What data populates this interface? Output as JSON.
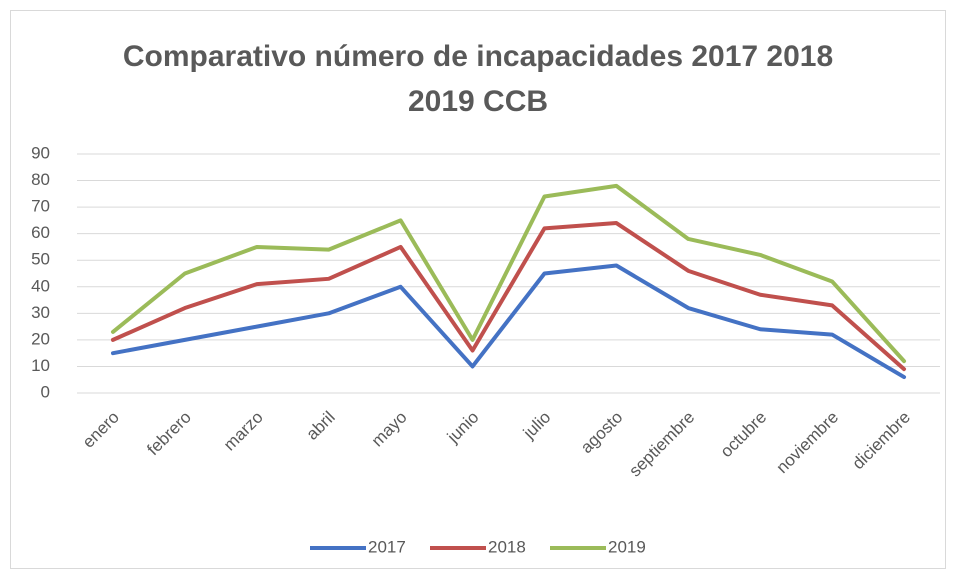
{
  "chart_data": {
    "type": "line",
    "title": "Comparativo número de incapacidades 2017 2018 2019 CCB",
    "categories": [
      "enero",
      "febrero",
      "marzo",
      "abril",
      "mayo",
      "junio",
      "julio",
      "agosto",
      "septiembre",
      "octubre",
      "noviembre",
      "diciembre"
    ],
    "series": [
      {
        "name": "2017",
        "color": "#4472c4",
        "values": [
          15,
          20,
          25,
          30,
          40,
          10,
          45,
          48,
          32,
          24,
          22,
          6
        ]
      },
      {
        "name": "2018",
        "color": "#c0504d",
        "values": [
          20,
          32,
          41,
          43,
          55,
          16,
          62,
          64,
          46,
          37,
          33,
          9
        ]
      },
      {
        "name": "2019",
        "color": "#9bbb59",
        "values": [
          23,
          45,
          55,
          54,
          65,
          20,
          74,
          78,
          58,
          52,
          42,
          12
        ]
      }
    ],
    "ylim": [
      0,
      90
    ],
    "yticks": [
      0,
      10,
      20,
      30,
      40,
      50,
      60,
      70,
      80,
      90
    ],
    "grid": true,
    "legend": "bottom"
  }
}
